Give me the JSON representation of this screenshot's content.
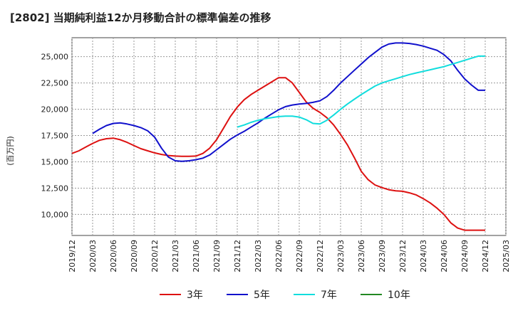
{
  "chart_data": {
    "type": "line",
    "title": "[2802]  当期純利益12か月移動合計の標準偏差の推移",
    "ylabel": "(百万円)",
    "x_ticks": [
      "2019/12",
      "2020/03",
      "2020/06",
      "2020/09",
      "2020/12",
      "2021/03",
      "2021/06",
      "2021/09",
      "2021/12",
      "2022/03",
      "2022/06",
      "2022/09",
      "2022/12",
      "2023/03",
      "2023/06",
      "2023/09",
      "2023/12",
      "2024/03",
      "2024/06",
      "2024/09",
      "2024/12",
      "2025/03"
    ],
    "y_ticks": [
      "10,000",
      "12,500",
      "15,000",
      "17,500",
      "20,000",
      "22,500",
      "25,000"
    ],
    "ylim": [
      8000,
      26800
    ],
    "grid": true,
    "legend_position": "bottom",
    "series": [
      {
        "name": "3年",
        "color": "#dd1111",
        "x": [
          "2019/12",
          "2020/01",
          "2020/02",
          "2020/03",
          "2020/04",
          "2020/05",
          "2020/06",
          "2020/07",
          "2020/08",
          "2020/09",
          "2020/10",
          "2020/11",
          "2020/12",
          "2021/01",
          "2021/02",
          "2021/03",
          "2021/04",
          "2021/05",
          "2021/06",
          "2021/07",
          "2021/08",
          "2021/09",
          "2021/10",
          "2021/11",
          "2021/12",
          "2022/01",
          "2022/02",
          "2022/03",
          "2022/04",
          "2022/05",
          "2022/06",
          "2022/07",
          "2022/08",
          "2022/09",
          "2022/10",
          "2022/11",
          "2022/12",
          "2023/01",
          "2023/02",
          "2023/03",
          "2023/04",
          "2023/05",
          "2023/06",
          "2023/07",
          "2023/08",
          "2023/09",
          "2023/10",
          "2023/11",
          "2023/12",
          "2024/01",
          "2024/02",
          "2024/03",
          "2024/04",
          "2024/05",
          "2024/06",
          "2024/07",
          "2024/08",
          "2024/09",
          "2024/10",
          "2024/11",
          "2024/12"
        ],
        "values": [
          15800,
          16050,
          16400,
          16750,
          17050,
          17200,
          17250,
          17100,
          16850,
          16550,
          16250,
          16050,
          15850,
          15700,
          15600,
          15550,
          15520,
          15520,
          15550,
          15800,
          16300,
          17100,
          18200,
          19300,
          20200,
          20900,
          21400,
          21800,
          22200,
          22600,
          23000,
          23000,
          22500,
          21600,
          20700,
          20100,
          19700,
          19200,
          18500,
          17600,
          16600,
          15400,
          14100,
          13300,
          12800,
          12550,
          12350,
          12250,
          12200,
          12050,
          11850,
          11500,
          11100,
          10600,
          10000,
          9200,
          8700,
          8500,
          8500,
          8500,
          8500
        ]
      },
      {
        "name": "5年",
        "color": "#1111cc",
        "x": [
          "2020/03",
          "2020/04",
          "2020/05",
          "2020/06",
          "2020/07",
          "2020/08",
          "2020/09",
          "2020/10",
          "2020/11",
          "2020/12",
          "2021/01",
          "2021/02",
          "2021/03",
          "2021/04",
          "2021/05",
          "2021/06",
          "2021/07",
          "2021/08",
          "2021/09",
          "2021/10",
          "2021/11",
          "2021/12",
          "2022/01",
          "2022/02",
          "2022/03",
          "2022/04",
          "2022/05",
          "2022/06",
          "2022/07",
          "2022/08",
          "2022/09",
          "2022/10",
          "2022/11",
          "2022/12",
          "2023/01",
          "2023/02",
          "2023/03",
          "2023/04",
          "2023/05",
          "2023/06",
          "2023/07",
          "2023/08",
          "2023/09",
          "2023/10",
          "2023/11",
          "2023/12",
          "2024/01",
          "2024/02",
          "2024/03",
          "2024/04",
          "2024/05",
          "2024/06",
          "2024/07",
          "2024/08",
          "2024/09",
          "2024/10",
          "2024/11",
          "2024/12"
        ],
        "values": [
          17700,
          18100,
          18450,
          18650,
          18700,
          18600,
          18450,
          18250,
          17950,
          17350,
          16300,
          15450,
          15100,
          15050,
          15100,
          15200,
          15350,
          15650,
          16150,
          16650,
          17150,
          17550,
          17900,
          18300,
          18700,
          19150,
          19550,
          19950,
          20250,
          20400,
          20500,
          20550,
          20650,
          20800,
          21200,
          21800,
          22500,
          23100,
          23700,
          24300,
          24900,
          25400,
          25900,
          26200,
          26300,
          26300,
          26250,
          26150,
          26000,
          25800,
          25600,
          25200,
          24600,
          23700,
          22900,
          22300,
          21800,
          21800
        ]
      },
      {
        "name": "7年",
        "color": "#11dddd",
        "x": [
          "2021/12",
          "2022/01",
          "2022/02",
          "2022/03",
          "2022/04",
          "2022/05",
          "2022/06",
          "2022/07",
          "2022/08",
          "2022/09",
          "2022/10",
          "2022/11",
          "2022/12",
          "2023/01",
          "2023/02",
          "2023/03",
          "2023/04",
          "2023/05",
          "2023/06",
          "2023/07",
          "2023/08",
          "2023/09",
          "2023/10",
          "2023/11",
          "2023/12",
          "2024/01",
          "2024/02",
          "2024/03",
          "2024/04",
          "2024/05",
          "2024/06",
          "2024/07",
          "2024/08",
          "2024/09",
          "2024/10",
          "2024/11",
          "2024/12"
        ],
        "values": [
          18300,
          18500,
          18750,
          18950,
          19100,
          19200,
          19300,
          19350,
          19350,
          19250,
          19000,
          18650,
          18600,
          18950,
          19450,
          20000,
          20500,
          20950,
          21400,
          21800,
          22200,
          22500,
          22700,
          22900,
          23100,
          23300,
          23450,
          23600,
          23750,
          23900,
          24050,
          24250,
          24450,
          24650,
          24850,
          25050,
          25050
        ]
      },
      {
        "name": "10年",
        "color": "#228822",
        "x": [],
        "values": []
      }
    ]
  }
}
